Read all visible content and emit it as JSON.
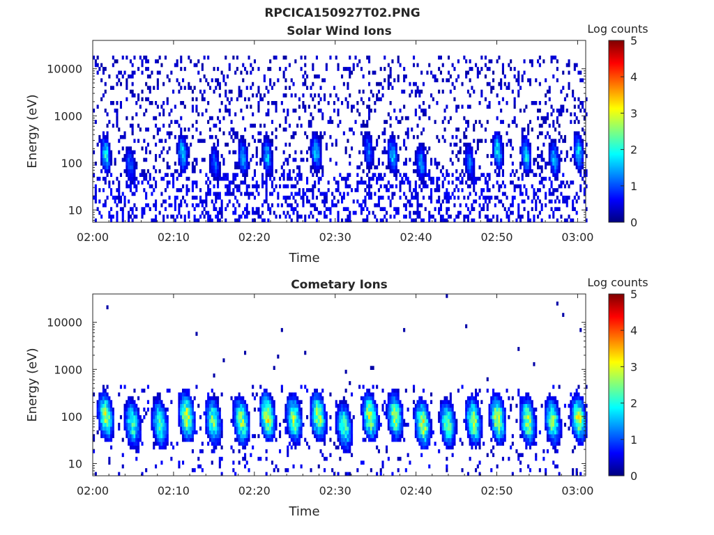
{
  "figure": {
    "title": "RPCICA150927T02.PNG"
  },
  "colors": {
    "colormap": [
      "#00007f",
      "#0000ff",
      "#007fff",
      "#00ffff",
      "#7fff7f",
      "#ffff00",
      "#ff7f00",
      "#ff0000",
      "#7f0000"
    ],
    "axis": "#262626",
    "background": "#ffffff"
  },
  "chart_data": [
    {
      "type": "heatmap",
      "title": "Solar Wind Ions",
      "xlabel": "Time",
      "ylabel": "Energy (eV)",
      "x_ticks": [
        "02:00",
        "02:10",
        "02:20",
        "02:30",
        "02:40",
        "02:50",
        "03:00"
      ],
      "x_range_minutes": [
        0,
        61
      ],
      "y_scale": "log",
      "y_range": [
        5.5,
        40000
      ],
      "y_ticks": [
        {
          "value": 10,
          "label": "10"
        },
        {
          "value": 100,
          "label": "100"
        },
        {
          "value": 1000,
          "label": "1000"
        },
        {
          "value": 10000,
          "label": "10000"
        }
      ],
      "colorbar": {
        "label": "Log counts",
        "range": [
          0,
          5
        ],
        "ticks": [
          "0",
          "1",
          "2",
          "3",
          "4",
          "5"
        ]
      },
      "background_noise": "sparse dots 10 eV – 30 keV",
      "bursts": [
        {
          "t_min": 1.5,
          "e_peak_ev": 150,
          "log_counts_peak": 2.0
        },
        {
          "t_min": 4.5,
          "e_peak_ev": 90,
          "log_counts_peak": 1.2
        },
        {
          "t_min": 11.0,
          "e_peak_ev": 160,
          "log_counts_peak": 1.8
        },
        {
          "t_min": 15.0,
          "e_peak_ev": 100,
          "log_counts_peak": 1.2
        },
        {
          "t_min": 18.5,
          "e_peak_ev": 130,
          "log_counts_peak": 1.6
        },
        {
          "t_min": 21.5,
          "e_peak_ev": 140,
          "log_counts_peak": 1.7
        },
        {
          "t_min": 27.5,
          "e_peak_ev": 170,
          "log_counts_peak": 1.8
        },
        {
          "t_min": 34.0,
          "e_peak_ev": 180,
          "log_counts_peak": 1.3
        },
        {
          "t_min": 37.0,
          "e_peak_ev": 150,
          "log_counts_peak": 1.7
        },
        {
          "t_min": 40.5,
          "e_peak_ev": 100,
          "log_counts_peak": 1.5
        },
        {
          "t_min": 46.5,
          "e_peak_ev": 110,
          "log_counts_peak": 1.3
        },
        {
          "t_min": 50.0,
          "e_peak_ev": 180,
          "log_counts_peak": 2.0
        },
        {
          "t_min": 53.5,
          "e_peak_ev": 150,
          "log_counts_peak": 2.0
        },
        {
          "t_min": 57.0,
          "e_peak_ev": 120,
          "log_counts_peak": 1.6
        },
        {
          "t_min": 60.0,
          "e_peak_ev": 170,
          "log_counts_peak": 1.9
        }
      ]
    },
    {
      "type": "heatmap",
      "title": "Cometary Ions",
      "xlabel": "Time",
      "ylabel": "Energy (eV)",
      "x_ticks": [
        "02:00",
        "02:10",
        "02:20",
        "02:30",
        "02:40",
        "02:50",
        "03:00"
      ],
      "x_range_minutes": [
        0,
        61
      ],
      "y_scale": "log",
      "y_range": [
        5.5,
        40000
      ],
      "y_ticks": [
        {
          "value": 10,
          "label": "10"
        },
        {
          "value": 100,
          "label": "100"
        },
        {
          "value": 1000,
          "label": "1000"
        },
        {
          "value": 10000,
          "label": "10000"
        }
      ],
      "colorbar": {
        "label": "Log counts",
        "range": [
          0,
          5
        ],
        "ticks": [
          "0",
          "1",
          "2",
          "3",
          "4",
          "5"
        ]
      },
      "background_noise": "few isolated dots above 1 keV",
      "bursts": [
        {
          "t_min": 1.5,
          "e_peak_ev": 100,
          "log_counts_peak": 2.8
        },
        {
          "t_min": 4.8,
          "e_peak_ev": 70,
          "log_counts_peak": 2.3
        },
        {
          "t_min": 8.2,
          "e_peak_ev": 70,
          "log_counts_peak": 2.5
        },
        {
          "t_min": 11.5,
          "e_peak_ev": 100,
          "log_counts_peak": 3.0
        },
        {
          "t_min": 14.8,
          "e_peak_ev": 80,
          "log_counts_peak": 2.6
        },
        {
          "t_min": 18.3,
          "e_peak_ev": 80,
          "log_counts_peak": 2.8
        },
        {
          "t_min": 21.5,
          "e_peak_ev": 100,
          "log_counts_peak": 3.1
        },
        {
          "t_min": 24.8,
          "e_peak_ev": 90,
          "log_counts_peak": 2.7
        },
        {
          "t_min": 27.8,
          "e_peak_ev": 100,
          "log_counts_peak": 2.9
        },
        {
          "t_min": 31.0,
          "e_peak_ev": 60,
          "log_counts_peak": 2.4
        },
        {
          "t_min": 34.2,
          "e_peak_ev": 100,
          "log_counts_peak": 2.9
        },
        {
          "t_min": 37.3,
          "e_peak_ev": 100,
          "log_counts_peak": 2.8
        },
        {
          "t_min": 40.7,
          "e_peak_ev": 70,
          "log_counts_peak": 3.0
        },
        {
          "t_min": 43.8,
          "e_peak_ev": 70,
          "log_counts_peak": 2.5
        },
        {
          "t_min": 47.0,
          "e_peak_ev": 80,
          "log_counts_peak": 2.8
        },
        {
          "t_min": 50.0,
          "e_peak_ev": 90,
          "log_counts_peak": 3.1
        },
        {
          "t_min": 53.7,
          "e_peak_ev": 80,
          "log_counts_peak": 2.8
        },
        {
          "t_min": 56.8,
          "e_peak_ev": 80,
          "log_counts_peak": 2.6
        },
        {
          "t_min": 60.0,
          "e_peak_ev": 90,
          "log_counts_peak": 2.9
        }
      ]
    }
  ]
}
